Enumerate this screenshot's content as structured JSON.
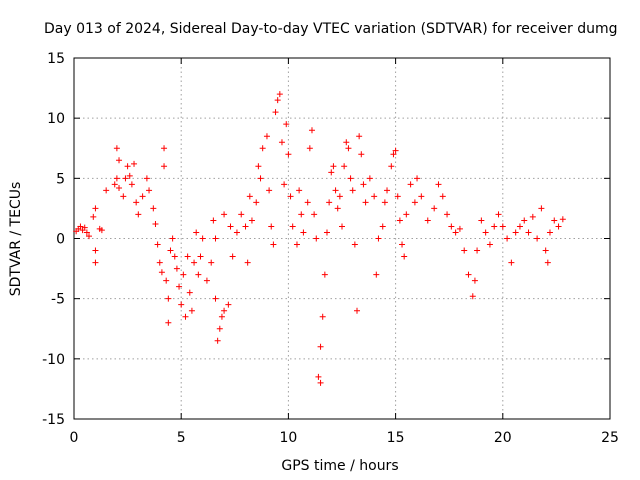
{
  "chart_data": {
    "type": "scatter",
    "title": "Day 013 of 2024, Sidereal Day-to-day VTEC variation (SDTVAR) for receiver dumg",
    "xlabel": "GPS time / hours",
    "ylabel": "SDTVAR / TECUs",
    "xlim": [
      0,
      25
    ],
    "ylim": [
      -15,
      15
    ],
    "xticks": [
      0,
      5,
      10,
      15,
      20,
      25
    ],
    "yticks": [
      -15,
      -10,
      -5,
      0,
      5,
      10,
      15
    ],
    "grid": true,
    "marker": "+",
    "color": "#ff0000",
    "series": [
      {
        "name": "SDTVAR",
        "points": [
          [
            0.1,
            0.6
          ],
          [
            0.2,
            0.8
          ],
          [
            0.3,
            1.0
          ],
          [
            0.4,
            0.7
          ],
          [
            0.5,
            0.9
          ],
          [
            0.6,
            0.5
          ],
          [
            0.7,
            0.2
          ],
          [
            0.9,
            1.8
          ],
          [
            1.0,
            2.5
          ],
          [
            1.0,
            -1.0
          ],
          [
            1.0,
            -2.0
          ],
          [
            1.2,
            0.8
          ],
          [
            1.3,
            0.7
          ],
          [
            1.5,
            4.0
          ],
          [
            1.9,
            4.5
          ],
          [
            2.0,
            7.5
          ],
          [
            2.1,
            6.5
          ],
          [
            2.0,
            5.0
          ],
          [
            2.1,
            4.2
          ],
          [
            2.3,
            3.5
          ],
          [
            2.4,
            5.0
          ],
          [
            2.5,
            6.0
          ],
          [
            2.6,
            5.2
          ],
          [
            2.7,
            4.5
          ],
          [
            2.8,
            6.2
          ],
          [
            2.9,
            3.0
          ],
          [
            3.0,
            2.0
          ],
          [
            3.2,
            3.5
          ],
          [
            3.4,
            5.0
          ],
          [
            3.5,
            4.0
          ],
          [
            3.7,
            2.5
          ],
          [
            3.8,
            1.2
          ],
          [
            3.9,
            -0.5
          ],
          [
            4.0,
            -2.0
          ],
          [
            4.1,
            -2.8
          ],
          [
            4.2,
            6.0
          ],
          [
            4.2,
            7.5
          ],
          [
            4.3,
            -3.5
          ],
          [
            4.4,
            -7.0
          ],
          [
            4.4,
            -5.0
          ],
          [
            4.5,
            -1.0
          ],
          [
            4.6,
            0.0
          ],
          [
            4.7,
            -1.5
          ],
          [
            4.8,
            -2.5
          ],
          [
            4.9,
            -4.0
          ],
          [
            5.0,
            -5.5
          ],
          [
            5.1,
            -3.0
          ],
          [
            5.2,
            -6.5
          ],
          [
            5.3,
            -1.5
          ],
          [
            5.4,
            -4.5
          ],
          [
            5.5,
            -6.0
          ],
          [
            5.6,
            -2.0
          ],
          [
            5.7,
            0.5
          ],
          [
            5.8,
            -3.0
          ],
          [
            5.9,
            -1.5
          ],
          [
            6.0,
            0.0
          ],
          [
            6.2,
            -3.5
          ],
          [
            6.4,
            -2.0
          ],
          [
            6.5,
            1.5
          ],
          [
            6.6,
            0.0
          ],
          [
            6.6,
            -5.0
          ],
          [
            6.7,
            -8.5
          ],
          [
            6.8,
            -7.5
          ],
          [
            6.9,
            -6.5
          ],
          [
            7.0,
            -6.0
          ],
          [
            7.2,
            -5.5
          ],
          [
            7.0,
            2.0
          ],
          [
            7.3,
            1.0
          ],
          [
            7.4,
            -1.5
          ],
          [
            7.6,
            0.5
          ],
          [
            7.8,
            2.0
          ],
          [
            8.0,
            1.0
          ],
          [
            8.1,
            -2.0
          ],
          [
            8.2,
            3.5
          ],
          [
            8.3,
            1.5
          ],
          [
            8.5,
            3.0
          ],
          [
            8.6,
            6.0
          ],
          [
            8.7,
            5.0
          ],
          [
            8.8,
            7.5
          ],
          [
            9.0,
            8.5
          ],
          [
            9.1,
            4.0
          ],
          [
            9.2,
            1.0
          ],
          [
            9.3,
            -0.5
          ],
          [
            9.4,
            10.5
          ],
          [
            9.5,
            11.5
          ],
          [
            9.6,
            12.0
          ],
          [
            9.7,
            8.0
          ],
          [
            9.8,
            4.5
          ],
          [
            9.9,
            9.5
          ],
          [
            10.0,
            7.0
          ],
          [
            10.1,
            3.5
          ],
          [
            10.2,
            1.0
          ],
          [
            10.4,
            -0.5
          ],
          [
            10.5,
            4.0
          ],
          [
            10.6,
            2.0
          ],
          [
            10.7,
            0.5
          ],
          [
            10.9,
            3.0
          ],
          [
            11.0,
            7.5
          ],
          [
            11.1,
            9.0
          ],
          [
            11.2,
            2.0
          ],
          [
            11.3,
            0.0
          ],
          [
            11.4,
            -11.5
          ],
          [
            11.5,
            -12.0
          ],
          [
            11.5,
            -9.0
          ],
          [
            11.6,
            -6.5
          ],
          [
            11.7,
            -3.0
          ],
          [
            11.8,
            0.5
          ],
          [
            11.9,
            3.0
          ],
          [
            12.0,
            5.5
          ],
          [
            12.1,
            6.0
          ],
          [
            12.2,
            4.0
          ],
          [
            12.3,
            2.5
          ],
          [
            12.4,
            3.5
          ],
          [
            12.5,
            1.0
          ],
          [
            12.6,
            6.0
          ],
          [
            12.7,
            8.0
          ],
          [
            12.8,
            7.5
          ],
          [
            12.9,
            5.0
          ],
          [
            13.0,
            4.0
          ],
          [
            13.1,
            -0.5
          ],
          [
            13.2,
            -6.0
          ],
          [
            13.3,
            8.5
          ],
          [
            13.4,
            7.0
          ],
          [
            13.5,
            4.5
          ],
          [
            13.6,
            3.0
          ],
          [
            13.8,
            5.0
          ],
          [
            14.0,
            3.5
          ],
          [
            14.1,
            -3.0
          ],
          [
            14.2,
            0.0
          ],
          [
            14.4,
            1.0
          ],
          [
            14.5,
            3.0
          ],
          [
            14.6,
            4.0
          ],
          [
            14.8,
            6.0
          ],
          [
            14.9,
            7.0
          ],
          [
            15.0,
            7.3
          ],
          [
            15.1,
            3.5
          ],
          [
            15.2,
            1.5
          ],
          [
            15.3,
            -0.5
          ],
          [
            15.4,
            -1.5
          ],
          [
            15.5,
            2.0
          ],
          [
            15.7,
            4.5
          ],
          [
            15.9,
            3.0
          ],
          [
            16.0,
            5.0
          ],
          [
            16.2,
            3.5
          ],
          [
            16.5,
            1.5
          ],
          [
            16.8,
            2.5
          ],
          [
            17.0,
            4.5
          ],
          [
            17.2,
            3.5
          ],
          [
            17.4,
            2.0
          ],
          [
            17.6,
            1.0
          ],
          [
            17.8,
            0.5
          ],
          [
            18.0,
            0.8
          ],
          [
            18.2,
            -1.0
          ],
          [
            18.4,
            -3.0
          ],
          [
            18.6,
            -4.8
          ],
          [
            18.7,
            -3.5
          ],
          [
            18.8,
            -1.0
          ],
          [
            19.0,
            1.5
          ],
          [
            19.2,
            0.5
          ],
          [
            19.4,
            -0.5
          ],
          [
            19.6,
            1.0
          ],
          [
            19.8,
            2.0
          ],
          [
            20.0,
            1.0
          ],
          [
            20.2,
            0.0
          ],
          [
            20.4,
            -2.0
          ],
          [
            20.6,
            0.5
          ],
          [
            20.8,
            1.0
          ],
          [
            21.0,
            1.5
          ],
          [
            21.2,
            0.5
          ],
          [
            21.4,
            1.8
          ],
          [
            21.6,
            0.0
          ],
          [
            21.8,
            2.5
          ],
          [
            22.0,
            -1.0
          ],
          [
            22.1,
            -2.0
          ],
          [
            22.2,
            0.5
          ],
          [
            22.4,
            1.5
          ],
          [
            22.6,
            1.0
          ],
          [
            22.8,
            1.6
          ]
        ]
      }
    ]
  }
}
